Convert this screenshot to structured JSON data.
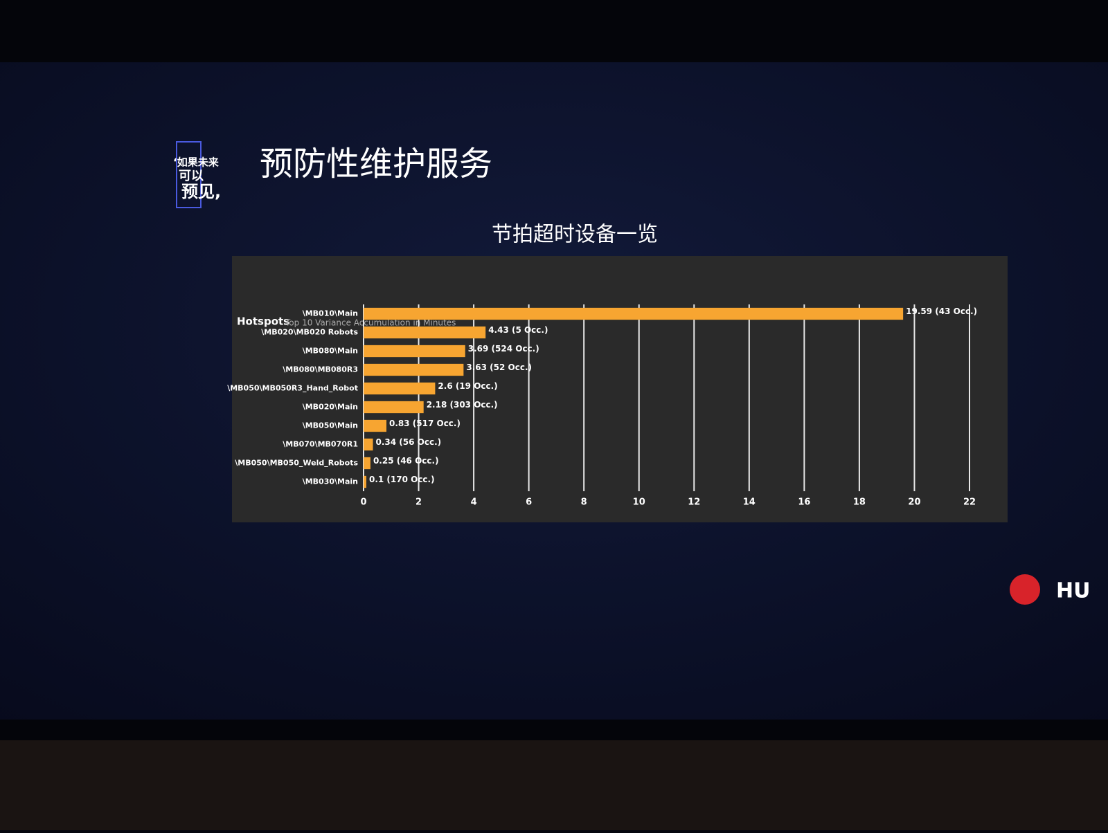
{
  "slide": {
    "title": "预防性维护服务",
    "heading": "节拍超时设备一览",
    "logo": [
      "‘如果未来",
      "可以",
      "预见,"
    ],
    "brand": "HU"
  },
  "chart_data": {
    "type": "hbar",
    "title": "Hotspots",
    "subtitle": "Top 10 Variance Accumulation in Minutes",
    "categories": [
      "\\MB010\\Main",
      "\\MB020\\MB020 Robots",
      "\\MB080\\Main",
      "\\MB080\\MB080R3",
      "\\MB050\\MB050R3_Hand_Robot",
      "\\MB020\\Main",
      "\\MB050\\Main",
      "\\MB070\\MB070R1",
      "\\MB050\\MB050_Weld_Robots",
      "\\MB030\\Main"
    ],
    "values": [
      19.59,
      4.43,
      3.69,
      3.63,
      2.6,
      2.18,
      0.83,
      0.34,
      0.25,
      0.1
    ],
    "value_labels": [
      "19.59 (43 Occ.)",
      "4.43 (5 Occ.)",
      "3.69 (524 Occ.)",
      "3.63 (52 Occ.)",
      "2.6 (19 Occ.)",
      "2.18 (303 Occ.)",
      "0.83 (517 Occ.)",
      "0.34 (56 Occ.)",
      "0.25 (46 Occ.)",
      "0.1 (170 Occ.)"
    ],
    "color": "#f7a531",
    "xlim": [
      0,
      22
    ],
    "xticks": [
      0,
      2,
      4,
      6,
      8,
      10,
      12,
      14,
      16,
      18,
      20,
      22
    ],
    "grid": true
  }
}
